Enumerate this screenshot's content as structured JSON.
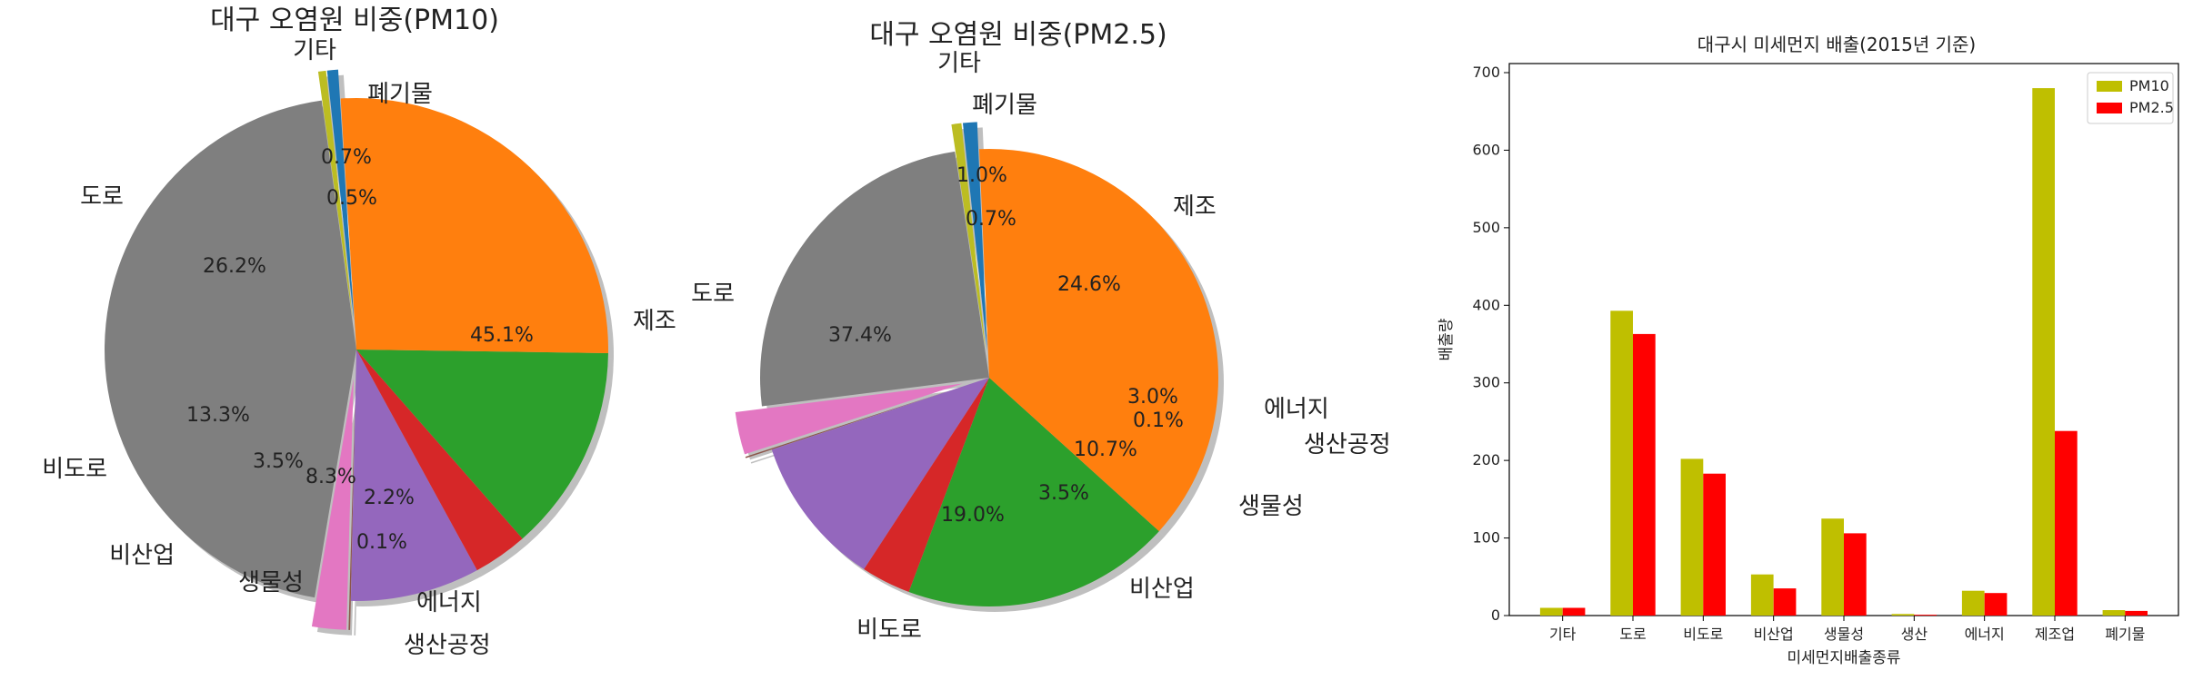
{
  "chart_data": [
    {
      "type": "pie",
      "title": "대구 오염원 비중(PM10)",
      "slices": [
        {
          "label": "기타",
          "pct_label": "0.7%",
          "value": 0.7,
          "color": "#1f77b4",
          "explode": true
        },
        {
          "label": "폐기물",
          "pct_label": "0.5%",
          "value": 0.5,
          "color": "#bcbd22",
          "explode": true
        },
        {
          "label": "제조",
          "pct_label": "45.1%",
          "value": 45.1,
          "color": "#7f7f7f",
          "explode": false
        },
        {
          "label": "에너지",
          "pct_label": "2.2%",
          "value": 2.2,
          "color": "#e377c2",
          "explode": true
        },
        {
          "label": "생산공정",
          "pct_label": "0.1%",
          "value": 0.1,
          "color": "#8c564b",
          "explode": true
        },
        {
          "label": "생물성",
          "pct_label": "8.3%",
          "value": 8.3,
          "color": "#9467bd",
          "explode": false
        },
        {
          "label": "비산업",
          "pct_label": "3.5%",
          "value": 3.5,
          "color": "#d62728",
          "explode": false
        },
        {
          "label": "비도로",
          "pct_label": "13.3%",
          "value": 13.3,
          "color": "#2ca02c",
          "explode": false
        },
        {
          "label": "도로",
          "pct_label": "26.2%",
          "value": 26.2,
          "color": "#ff7f0e",
          "explode": false
        }
      ]
    },
    {
      "type": "pie",
      "title": "대구 오염원 비중(PM2.5)",
      "slices": [
        {
          "label": "기타",
          "pct_label": "1.0%",
          "value": 1.0,
          "color": "#1f77b4",
          "explode": true
        },
        {
          "label": "폐기물",
          "pct_label": "0.7%",
          "value": 0.7,
          "color": "#bcbd22",
          "explode": true
        },
        {
          "label": "제조",
          "pct_label": "24.6%",
          "value": 24.6,
          "color": "#7f7f7f",
          "explode": false
        },
        {
          "label": "에너지",
          "pct_label": "3.0%",
          "value": 3.0,
          "color": "#e377c2",
          "explode": true
        },
        {
          "label": "생산공정",
          "pct_label": "0.1%",
          "value": 0.1,
          "color": "#8c564b",
          "explode": true
        },
        {
          "label": "생물성",
          "pct_label": "10.7%",
          "value": 10.7,
          "color": "#9467bd",
          "explode": false
        },
        {
          "label": "비산업",
          "pct_label": "3.5%",
          "value": 3.5,
          "color": "#d62728",
          "explode": false
        },
        {
          "label": "비도로",
          "pct_label": "19.0%",
          "value": 19.0,
          "color": "#2ca02c",
          "explode": false
        },
        {
          "label": "도로",
          "pct_label": "37.4%",
          "value": 37.4,
          "color": "#ff7f0e",
          "explode": false
        }
      ]
    },
    {
      "type": "bar",
      "title": "대구시 미세먼지 배출(2015년 기준)",
      "xlabel": "미세먼지배출종류",
      "ylabel": "배출량",
      "ylim": [
        0,
        700
      ],
      "yticks": [
        0,
        100,
        200,
        300,
        400,
        500,
        600,
        700
      ],
      "categories": [
        "기타",
        "도로",
        "비도로",
        "비산업",
        "생물성",
        "생산",
        "에너지",
        "제조업",
        "폐기물"
      ],
      "series": [
        {
          "name": "PM10",
          "color": "#bfbf00",
          "values": [
            10,
            393,
            202,
            53,
            125,
            2,
            32,
            680,
            7
          ]
        },
        {
          "name": "PM2.5",
          "color": "#ff0000",
          "values": [
            10,
            363,
            183,
            35,
            106,
            1,
            29,
            238,
            6
          ]
        }
      ],
      "legend": "top-right",
      "grid": false
    }
  ]
}
